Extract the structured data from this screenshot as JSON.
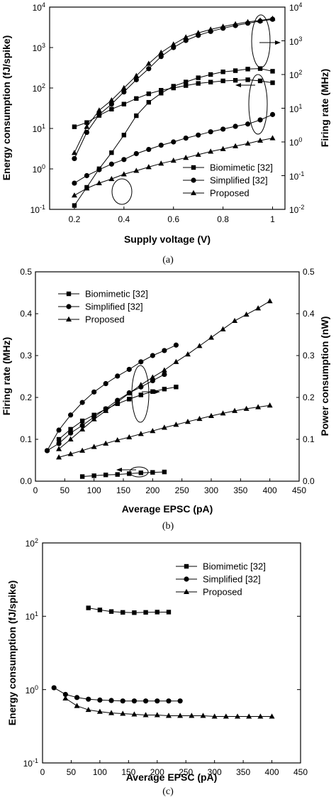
{
  "chart_data": [
    {
      "type": "line",
      "caption": "(a)",
      "xlabel": "Supply voltage (V)",
      "ylabel": "Energy consumption (fJ/spike)",
      "ylabel_right": "Firing rate (MHz)",
      "xlim": [
        0.1,
        1.05
      ],
      "xticks": [
        0.2,
        0.4,
        0.6,
        0.8,
        1
      ],
      "xtick_labels": [
        "0.2",
        "0.4",
        "0.6",
        "0.8",
        "1"
      ],
      "ylim": [
        0.1,
        10000
      ],
      "yscale": "log",
      "ytick_labels": [
        "10-1",
        "100",
        "101",
        "102",
        "103",
        "104"
      ],
      "ylim_right": [
        0.01,
        10000
      ],
      "ytick_labels_right": [
        "10-2",
        "10-1",
        "100",
        "101",
        "102",
        "103",
        "104"
      ],
      "legend": [
        "Biomimetic [32]",
        "Simplified [32]",
        "Proposed"
      ],
      "legend_position": "bottom-right",
      "series": [
        {
          "name": "Biomimetic [32]",
          "marker": "square",
          "axis": "left",
          "x": [
            0.2,
            0.25,
            0.3,
            0.35,
            0.4,
            0.45,
            0.5,
            0.55,
            0.6,
            0.65,
            0.7,
            0.75,
            0.8,
            0.85,
            0.9,
            0.95,
            1.0
          ],
          "y": [
            11,
            14,
            21,
            30,
            40,
            55,
            72,
            88,
            100,
            115,
            130,
            140,
            150,
            155,
            160,
            150,
            135
          ]
        },
        {
          "name": "Simplified [32]",
          "marker": "circle",
          "axis": "left",
          "x": [
            0.2,
            0.25,
            0.3,
            0.35,
            0.4,
            0.45,
            0.5,
            0.55,
            0.6,
            0.65,
            0.7,
            0.75,
            0.8,
            0.85,
            0.9,
            0.95,
            1.0
          ],
          "y": [
            1.8,
            8,
            22,
            40,
            80,
            160,
            300,
            600,
            1000,
            1500,
            2000,
            2500,
            3000,
            3500,
            4000,
            4500,
            5000
          ]
        },
        {
          "name": "Proposed",
          "marker": "triangle",
          "axis": "left",
          "x": [
            0.2,
            0.25,
            0.3,
            0.35,
            0.4,
            0.45,
            0.5,
            0.55,
            0.6,
            0.65,
            0.7,
            0.75,
            0.8,
            0.85,
            0.9,
            0.95,
            1.0
          ],
          "y": [
            2.5,
            11,
            28,
            50,
            100,
            200,
            400,
            750,
            1200,
            1800,
            2300,
            2800,
            3300,
            3800,
            4300,
            4700,
            5200
          ]
        },
        {
          "name": "Biomimetic [32]",
          "marker": "square",
          "axis": "right",
          "x": [
            0.2,
            0.25,
            0.3,
            0.35,
            0.4,
            0.45,
            0.5,
            0.55,
            0.6,
            0.65,
            0.7,
            0.75,
            0.8,
            0.85,
            0.9,
            0.95,
            1.0
          ],
          "y": [
            0.013,
            0.045,
            0.16,
            0.48,
            1.6,
            6,
            15,
            28,
            45,
            60,
            80,
            100,
            120,
            130,
            145,
            150,
            125
          ]
        },
        {
          "name": "Simplified [32]",
          "marker": "circle",
          "axis": "right",
          "x": [
            0.2,
            0.25,
            0.3,
            0.35,
            0.4,
            0.45,
            0.5,
            0.55,
            0.6,
            0.65,
            0.7,
            0.75,
            0.8,
            0.85,
            0.9,
            0.95,
            1.0
          ],
          "y": [
            0.06,
            0.1,
            0.15,
            0.22,
            0.3,
            0.45,
            0.6,
            0.8,
            1.0,
            1.3,
            1.6,
            2.0,
            2.4,
            2.9,
            3.4,
            4.5,
            6.5
          ]
        },
        {
          "name": "Proposed",
          "marker": "triangle",
          "axis": "right",
          "x": [
            0.2,
            0.25,
            0.3,
            0.35,
            0.4,
            0.45,
            0.5,
            0.55,
            0.6,
            0.65,
            0.7,
            0.75,
            0.8,
            0.85,
            0.9,
            0.95,
            1.0
          ],
          "y": [
            0.026,
            0.042,
            0.06,
            0.08,
            0.11,
            0.14,
            0.18,
            0.23,
            0.28,
            0.34,
            0.42,
            0.52,
            0.62,
            0.75,
            0.9,
            1.1,
            1.3
          ]
        }
      ]
    },
    {
      "type": "line",
      "caption": "(b)",
      "xlabel": "Average EPSC (pA)",
      "ylabel": "Firing rate (MHz)",
      "ylabel_right": "Power consumption (nW)",
      "xlim": [
        0,
        450
      ],
      "xticks": [
        0,
        50,
        100,
        150,
        200,
        250,
        300,
        350,
        400,
        450
      ],
      "xtick_labels": [
        "0",
        "50",
        "100",
        "150",
        "200",
        "250",
        "300",
        "350",
        "400",
        "450"
      ],
      "ylim": [
        0,
        0.5
      ],
      "yticks": [
        0,
        0.1,
        0.2,
        0.3,
        0.4,
        0.5
      ],
      "ytick_labels": [
        "0.0",
        "0.1",
        "0.2",
        "0.3",
        "0.4",
        "0.5"
      ],
      "ylim_right": [
        0,
        0.5
      ],
      "ytick_labels_right": [
        "0.0",
        "0.1",
        "0.2",
        "0.3",
        "0.4",
        "0.5"
      ],
      "legend": [
        "Biomimetic [32]",
        "Simplified [32]",
        "Proposed"
      ],
      "legend_position": "top-left",
      "series": [
        {
          "name": "Biomimetic [32]",
          "marker": "square",
          "axis": "left",
          "x": [
            80,
            100,
            120,
            140,
            160,
            180,
            200,
            220
          ],
          "y": [
            0.011,
            0.013,
            0.015,
            0.016,
            0.018,
            0.02,
            0.021,
            0.022
          ]
        },
        {
          "name": "Simplified [32]",
          "marker": "circle",
          "axis": "left",
          "x": [
            20,
            40,
            60,
            80,
            100,
            120,
            140,
            160,
            180,
            200,
            220,
            240
          ],
          "y": [
            0.073,
            0.122,
            0.158,
            0.188,
            0.213,
            0.233,
            0.251,
            0.267,
            0.285,
            0.3,
            0.312,
            0.325
          ]
        },
        {
          "name": "Proposed",
          "marker": "triangle",
          "axis": "left",
          "x": [
            40,
            60,
            80,
            100,
            120,
            140,
            160,
            180,
            200,
            220,
            240,
            260,
            280,
            300,
            320,
            340,
            360,
            380,
            400
          ],
          "y": [
            0.057,
            0.065,
            0.073,
            0.082,
            0.09,
            0.098,
            0.105,
            0.113,
            0.12,
            0.128,
            0.135,
            0.142,
            0.149,
            0.156,
            0.162,
            0.168,
            0.173,
            0.177,
            0.181
          ]
        },
        {
          "name": "Biomimetic [32]",
          "marker": "square",
          "axis": "right",
          "x": [
            40,
            60,
            80,
            100,
            120,
            140,
            160,
            180,
            200,
            220,
            240
          ],
          "y": [
            0.1,
            0.124,
            0.144,
            0.158,
            0.172,
            0.185,
            0.196,
            0.206,
            0.214,
            0.22,
            0.225
          ]
        },
        {
          "name": "Simplified [32]",
          "marker": "circle",
          "axis": "right",
          "x": [
            20,
            40,
            60,
            80,
            100,
            120,
            140,
            160,
            180,
            200,
            220
          ],
          "y": [
            0.073,
            0.09,
            0.115,
            0.133,
            0.153,
            0.173,
            0.193,
            0.211,
            0.225,
            0.24,
            0.255
          ]
        },
        {
          "name": "Proposed",
          "marker": "triangle",
          "axis": "right",
          "x": [
            40,
            60,
            80,
            100,
            120,
            140,
            160,
            180,
            200,
            220,
            240,
            260,
            280,
            300,
            320,
            340,
            360,
            380,
            400
          ],
          "y": [
            0.077,
            0.1,
            0.124,
            0.148,
            0.168,
            0.189,
            0.21,
            0.23,
            0.248,
            0.265,
            0.285,
            0.303,
            0.323,
            0.343,
            0.363,
            0.383,
            0.398,
            0.413,
            0.43
          ]
        }
      ]
    },
    {
      "type": "line",
      "caption": "(c)",
      "xlabel": "Average EPSC (pA)",
      "ylabel": "Energy consumption (fJ/spike)",
      "xlim": [
        0,
        450
      ],
      "xticks": [
        0,
        50,
        100,
        150,
        200,
        250,
        300,
        350,
        400,
        450
      ],
      "xtick_labels": [
        "0",
        "50",
        "100",
        "150",
        "200",
        "250",
        "300",
        "350",
        "400",
        "450"
      ],
      "ylim": [
        0.1,
        100
      ],
      "yscale": "log",
      "ytick_labels": [
        "10-1",
        "100",
        "101",
        "102"
      ],
      "legend": [
        "Biomimetic [32]",
        "Simplified [32]",
        "Proposed"
      ],
      "legend_position": "top-right",
      "series": [
        {
          "name": "Biomimetic [32]",
          "marker": "square",
          "x": [
            80,
            100,
            120,
            140,
            160,
            180,
            200,
            220
          ],
          "y": [
            13,
            12.2,
            11.6,
            11.3,
            11.2,
            11.3,
            11.4,
            11.4
          ]
        },
        {
          "name": "Simplified [32]",
          "marker": "circle",
          "x": [
            20,
            40,
            60,
            80,
            100,
            120,
            140,
            160,
            180,
            200,
            220,
            240
          ],
          "y": [
            1.06,
            0.86,
            0.78,
            0.74,
            0.72,
            0.71,
            0.7,
            0.7,
            0.7,
            0.7,
            0.7,
            0.7
          ]
        },
        {
          "name": "Proposed",
          "marker": "triangle",
          "x": [
            40,
            60,
            80,
            100,
            120,
            140,
            160,
            180,
            200,
            220,
            240,
            260,
            280,
            300,
            320,
            340,
            360,
            380,
            400
          ],
          "y": [
            0.76,
            0.6,
            0.53,
            0.5,
            0.48,
            0.47,
            0.46,
            0.45,
            0.45,
            0.44,
            0.44,
            0.44,
            0.44,
            0.43,
            0.43,
            0.43,
            0.43,
            0.43,
            0.43
          ]
        }
      ]
    }
  ]
}
